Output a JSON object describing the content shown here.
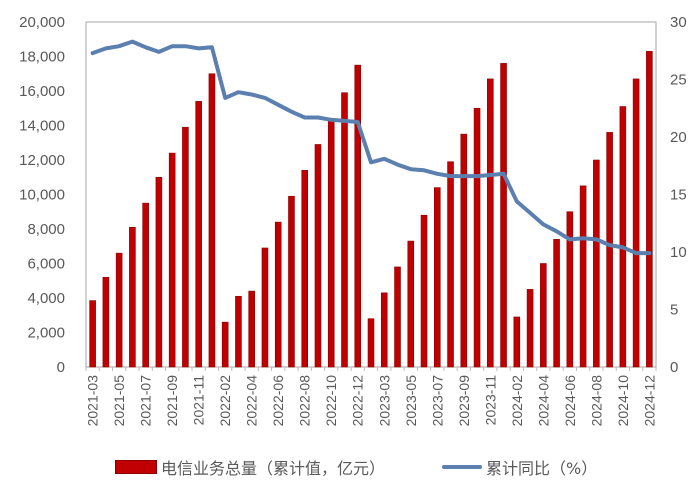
{
  "chart_data": {
    "type": "bar+line",
    "title": "",
    "categories": [
      "2021-03",
      "2021-04",
      "2021-05",
      "2021-06",
      "2021-07",
      "2021-08",
      "2021-09",
      "2021-10",
      "2021-11",
      "2021-12",
      "2022-02",
      "2022-03",
      "2022-04",
      "2022-05",
      "2022-06",
      "2022-07",
      "2022-08",
      "2022-09",
      "2022-10",
      "2022-11",
      "2022-12",
      "2023-02",
      "2023-03",
      "2023-04",
      "2023-05",
      "2023-06",
      "2023-07",
      "2023-08",
      "2023-09",
      "2023-10",
      "2023-11",
      "2023-12",
      "2024-02",
      "2024-03",
      "2024-04",
      "2024-05",
      "2024-06",
      "2024-07",
      "2024-08",
      "2024-09",
      "2024-10",
      "2024-11",
      "2024-12"
    ],
    "x_tick_labels": [
      "2021-03",
      "2021-05",
      "2021-07",
      "2021-09",
      "2021-11",
      "2022-02",
      "2022-04",
      "2022-06",
      "2022-08",
      "2022-10",
      "2022-12",
      "2023-03",
      "2023-05",
      "2023-07",
      "2023-09",
      "2023-11",
      "2024-02",
      "2024-04",
      "2024-06",
      "2024-08",
      "2024-10",
      "2024-12"
    ],
    "series": [
      {
        "name": "电信业务总量（累计值，亿元）",
        "type": "bar",
        "axis": "left",
        "color": "#C00000",
        "values": [
          3850,
          5200,
          6600,
          8100,
          9500,
          11000,
          12400,
          13900,
          15400,
          17000,
          2600,
          4100,
          4400,
          6900,
          8400,
          9900,
          11400,
          12900,
          14400,
          15900,
          17500,
          2800,
          4300,
          5800,
          7300,
          8800,
          10400,
          11900,
          13500,
          15000,
          16700,
          17600,
          2900,
          4500,
          6000,
          7400,
          9000,
          10500,
          12000,
          13600,
          15100,
          16700,
          18300
        ]
      },
      {
        "name": "累计同比（%）",
        "type": "line",
        "axis": "right",
        "color": "#5B7FAF",
        "values": [
          27.3,
          27.7,
          27.9,
          28.3,
          27.8,
          27.4,
          27.9,
          27.9,
          27.7,
          27.8,
          23.4,
          23.9,
          23.7,
          23.4,
          22.8,
          22.2,
          21.7,
          21.7,
          21.5,
          21.4,
          21.3,
          17.8,
          18.1,
          17.6,
          17.2,
          17.1,
          16.8,
          16.6,
          16.6,
          16.6,
          16.7,
          16.8,
          14.4,
          13.4,
          12.4,
          11.8,
          11.1,
          11.2,
          11.1,
          10.6,
          10.4,
          9.9,
          9.9
        ]
      }
    ],
    "left_axis": {
      "min": 0,
      "max": 20000,
      "step": 2000,
      "ticks": [
        "0",
        "2,000",
        "4,000",
        "6,000",
        "8,000",
        "10,000",
        "12,000",
        "14,000",
        "16,000",
        "18,000",
        "20,000"
      ]
    },
    "right_axis": {
      "min": 0,
      "max": 30,
      "step": 5,
      "ticks": [
        "0",
        "5",
        "10",
        "15",
        "20",
        "25",
        "30"
      ]
    },
    "grid": false,
    "legend_position": "bottom"
  },
  "legend": {
    "bar_label": "电信业务总量（累计值，亿元）",
    "line_label": "累计同比（%）"
  }
}
